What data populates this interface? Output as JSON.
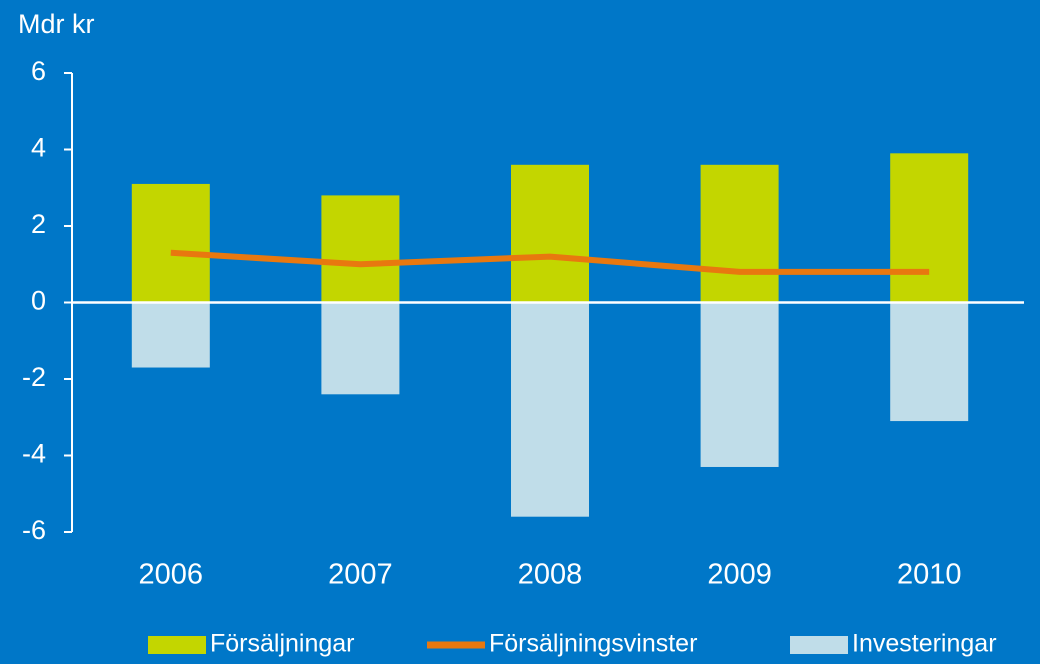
{
  "chart_data": {
    "type": "bar",
    "title": "Mdr kr",
    "categories": [
      "2006",
      "2007",
      "2008",
      "2009",
      "2010"
    ],
    "series": [
      {
        "name": "Försäljningar",
        "type": "bar",
        "color": "#c3d600",
        "values": [
          3.1,
          2.8,
          3.6,
          3.6,
          3.9
        ]
      },
      {
        "name": "Försäljningsvinster",
        "type": "line",
        "color": "#e8780f",
        "values": [
          1.3,
          1.0,
          1.2,
          0.8,
          0.8
        ]
      },
      {
        "name": "Investeringar",
        "type": "bar",
        "color": "#c0dde9",
        "values": [
          -1.7,
          -2.4,
          -5.6,
          -4.3,
          -3.1
        ]
      }
    ],
    "ylim": [
      -6,
      6
    ],
    "yticks": [
      -6,
      -4,
      -2,
      0,
      2,
      4,
      6
    ],
    "legend": "bottom"
  }
}
